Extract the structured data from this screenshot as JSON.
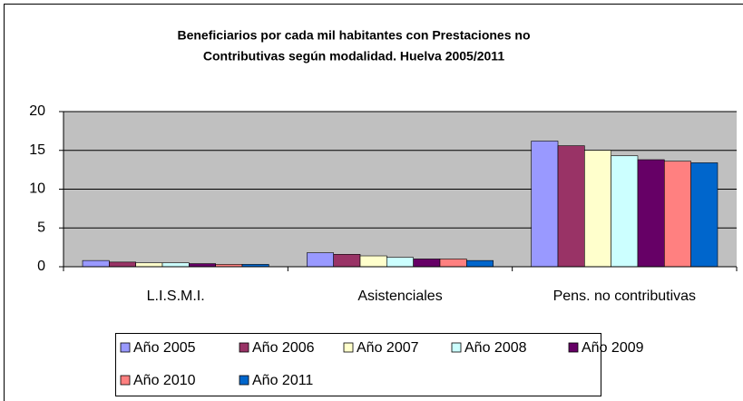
{
  "chart_data": {
    "type": "bar",
    "title": [
      "Beneficiarios por cada mil habitantes con Prestaciones no",
      "Contributivas según modalidad. Huelva 2005/2011"
    ],
    "categories": [
      "L.I.S.M.I.",
      "Asistenciales",
      "Pens. no contributivas"
    ],
    "series": [
      {
        "name": "Año 2005",
        "color": "#9999ff",
        "values": [
          0.8,
          1.8,
          16.2
        ]
      },
      {
        "name": "Año 2006",
        "color": "#993366",
        "values": [
          0.6,
          1.6,
          15.6
        ]
      },
      {
        "name": "Año 2007",
        "color": "#ffffcc",
        "values": [
          0.5,
          1.4,
          15.0
        ]
      },
      {
        "name": "Año 2008",
        "color": "#ccffff",
        "values": [
          0.5,
          1.2,
          14.3
        ]
      },
      {
        "name": "Año 2009",
        "color": "#660066",
        "values": [
          0.4,
          1.0,
          13.8
        ]
      },
      {
        "name": "Año 2010",
        "color": "#ff8080",
        "values": [
          0.3,
          1.0,
          13.6
        ]
      },
      {
        "name": "Año 2011",
        "color": "#0066cc",
        "values": [
          0.3,
          0.8,
          13.4
        ]
      }
    ],
    "ylim": [
      0,
      20
    ],
    "yticks": [
      0,
      5,
      10,
      15,
      20
    ],
    "grid": true,
    "legend": "bottom"
  }
}
